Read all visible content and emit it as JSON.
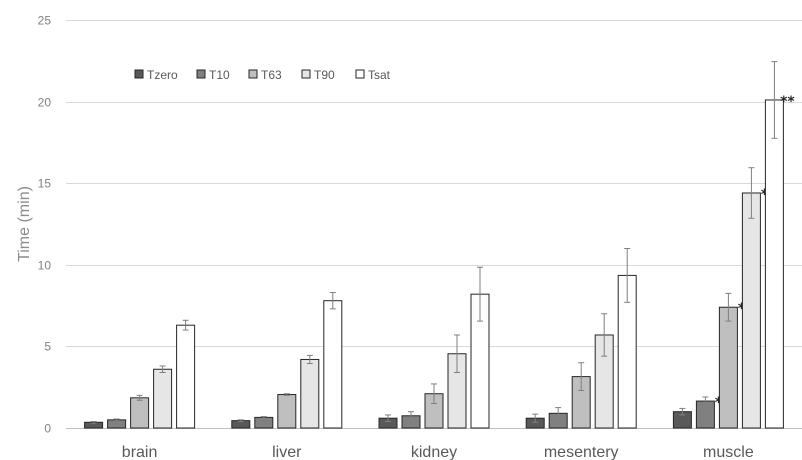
{
  "chart_data": {
    "type": "bar",
    "ylabel": "Time (min)",
    "ylim": [
      0,
      25
    ],
    "yticks": [
      0,
      5,
      10,
      15,
      20,
      25
    ],
    "grid": true,
    "legend_position": "top-left",
    "categories": [
      "brain",
      "liver",
      "kidney",
      "mesentery",
      "muscle"
    ],
    "series": [
      {
        "name": "Tzero",
        "color": "#595959",
        "values": [
          0.35,
          0.45,
          0.6,
          0.6,
          1.0
        ],
        "errors": [
          0.05,
          0.05,
          0.2,
          0.25,
          0.2
        ],
        "annotations": [
          "",
          "",
          "",
          "",
          ""
        ]
      },
      {
        "name": "T10",
        "color": "#808080",
        "values": [
          0.5,
          0.65,
          0.75,
          0.9,
          1.65
        ],
        "errors": [
          0.05,
          0.05,
          0.25,
          0.35,
          0.25
        ],
        "annotations": [
          "",
          "",
          "",
          "",
          "*"
        ]
      },
      {
        "name": "T63",
        "color": "#bfbfbf",
        "values": [
          1.85,
          2.05,
          2.1,
          3.15,
          7.4
        ],
        "errors": [
          0.15,
          0.05,
          0.6,
          0.85,
          0.85
        ],
        "annotations": [
          "",
          "",
          "",
          "",
          "*"
        ]
      },
      {
        "name": "T90",
        "color": "#e6e6e6",
        "values": [
          3.6,
          4.2,
          4.55,
          5.7,
          14.4
        ],
        "errors": [
          0.2,
          0.25,
          1.15,
          1.3,
          1.55
        ],
        "annotations": [
          "",
          "",
          "",
          "",
          "*"
        ]
      },
      {
        "name": "Tsat",
        "color": "#ffffff",
        "values": [
          6.3,
          7.8,
          8.2,
          9.35,
          20.1
        ],
        "errors": [
          0.3,
          0.5,
          1.65,
          1.65,
          2.35
        ],
        "annotations": [
          "",
          "",
          "",
          "",
          "**"
        ]
      }
    ]
  }
}
